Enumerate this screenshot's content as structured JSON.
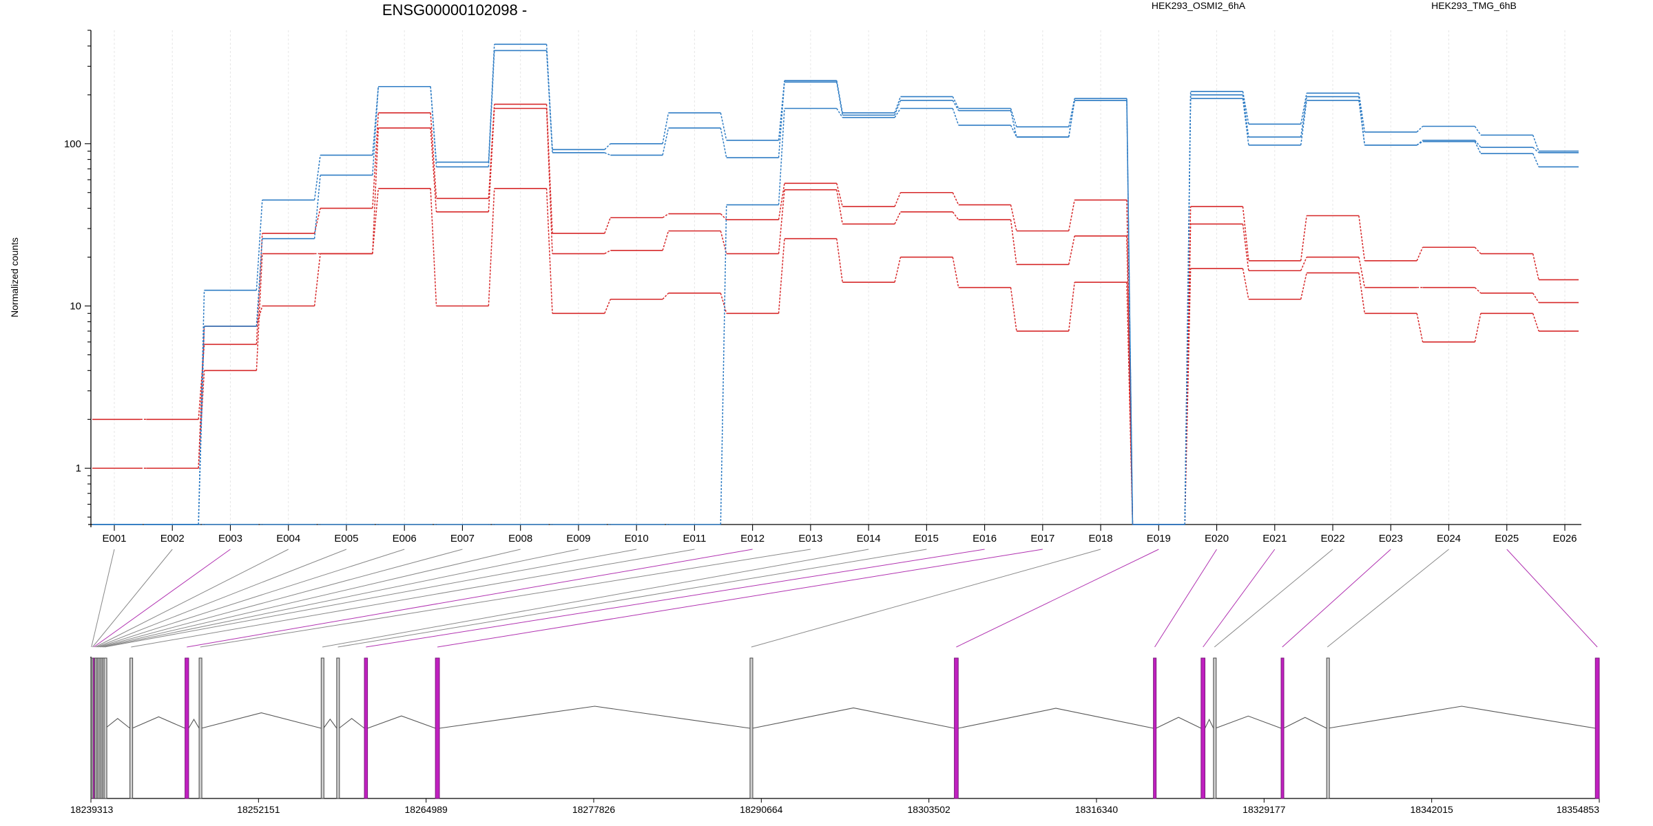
{
  "chart_data": {
    "type": "line",
    "title": "ENSG00000102098 -",
    "ylabel": "Normalized counts",
    "yscale": "log",
    "ylim": [
      0.45,
      500
    ],
    "yticks": [
      1,
      10,
      100
    ],
    "ytick_labels": [
      "1",
      "10",
      "100"
    ],
    "grid": "vertical dotted lines at each exon bin",
    "legend": "top, horizontal",
    "colors": {
      "HEK293_OSMI2_6hA": "#d62728",
      "HEK293_TMG_6hB": "#2e7cc4",
      "connector_gray": "#888888",
      "connector_magenta": "#b030b0",
      "exon_magenta": "#c020c0"
    },
    "categories": [
      "E001",
      "E002",
      "E003",
      "E004",
      "E005",
      "E006",
      "E007",
      "E008",
      "E009",
      "E010",
      "E011",
      "E012",
      "E013",
      "E014",
      "E015",
      "E016",
      "E017",
      "E018",
      "E019",
      "E020",
      "E021",
      "E022",
      "E023",
      "E024",
      "E025",
      "E026"
    ],
    "series": [
      {
        "name": "HEK293_OSMI2_6hA",
        "color": "#d62728",
        "values": [
          2.0,
          2.0,
          5.8,
          28,
          40,
          155,
          46,
          175,
          28,
          35,
          37,
          34,
          57,
          41,
          50,
          42,
          29,
          45,
          0.45,
          41,
          19,
          36,
          19,
          23,
          21,
          14.5
        ]
      },
      {
        "name": "HEK293_OSMI2_6hA",
        "color": "#d62728",
        "values": [
          1.0,
          1.0,
          4.0,
          21,
          21,
          125,
          38,
          165,
          21,
          22,
          29,
          21,
          52,
          32,
          38,
          34,
          18,
          27,
          0.45,
          32,
          16.5,
          20,
          13,
          13,
          12,
          10.5
        ]
      },
      {
        "name": "HEK293_OSMI2_6hA",
        "color": "#d62728",
        "values": [
          1.0,
          1.0,
          7.5,
          10,
          21,
          53,
          10,
          53,
          9,
          11,
          12,
          9,
          26,
          14,
          20,
          13,
          7,
          14,
          0.45,
          17,
          11,
          16,
          9,
          6,
          9,
          7
        ]
      },
      {
        "name": "HEK293_TMG_6hB",
        "color": "#2e7cc4",
        "values": [
          0.45,
          0.45,
          12.5,
          45,
          85,
          225,
          77,
          410,
          92,
          100,
          155,
          105,
          245,
          155,
          195,
          165,
          127,
          190,
          0.45,
          210,
          132,
          205,
          118,
          128,
          113,
          90
        ]
      },
      {
        "name": "HEK293_TMG_6hB",
        "color": "#2e7cc4",
        "values": [
          0.45,
          0.45,
          7.5,
          26,
          64,
          225,
          72,
          375,
          88,
          85,
          125,
          82,
          240,
          150,
          185,
          160,
          110,
          185,
          0.45,
          200,
          110,
          195,
          98,
          105,
          95,
          88
        ]
      },
      {
        "name": "HEK293_TMG_6hB",
        "color": "#2e7cc4",
        "values": [
          0.45,
          0.45,
          0.45,
          0.45,
          0.45,
          0.45,
          0.45,
          0.45,
          0.45,
          0.45,
          0.45,
          42,
          165,
          145,
          165,
          130,
          110,
          185,
          0.45,
          190,
          98,
          185,
          98,
          103,
          87,
          72
        ]
      }
    ],
    "gene_model": {
      "xlim": [
        18239313,
        18354853
      ],
      "xticks": [
        18239313,
        18252151,
        18264989,
        18277826,
        18290664,
        18303502,
        18316340,
        18329177,
        18342015,
        18354853
      ],
      "xtick_labels": [
        "18239313",
        "18252151",
        "18264989",
        "18277826",
        "18290664",
        "18303502",
        "18316340",
        "18329177",
        "18342015",
        "18354853"
      ],
      "exons": [
        {
          "id": "E001",
          "start": 18239313,
          "end": 18239390,
          "highlight": false
        },
        {
          "id": "E002",
          "start": 18239400,
          "end": 18239480,
          "highlight": false
        },
        {
          "id": "E003",
          "start": 18239500,
          "end": 18239560,
          "highlight": true
        },
        {
          "id": "E004",
          "start": 18239600,
          "end": 18239700,
          "highlight": false
        },
        {
          "id": "E005",
          "start": 18239720,
          "end": 18239800,
          "highlight": false
        },
        {
          "id": "E006",
          "start": 18239830,
          "end": 18239920,
          "highlight": false
        },
        {
          "id": "E007",
          "start": 18239950,
          "end": 18240050,
          "highlight": false
        },
        {
          "id": "E008",
          "start": 18240080,
          "end": 18240180,
          "highlight": false
        },
        {
          "id": "E009",
          "start": 18240200,
          "end": 18240300,
          "highlight": false
        },
        {
          "id": "E010",
          "start": 18240320,
          "end": 18240420,
          "highlight": false
        },
        {
          "id": "E011",
          "start": 18242300,
          "end": 18242480,
          "highlight": false
        },
        {
          "id": "E012",
          "start": 18246520,
          "end": 18246800,
          "highlight": true
        },
        {
          "id": "E013",
          "start": 18247600,
          "end": 18247780,
          "highlight": false
        },
        {
          "id": "E014",
          "start": 18256950,
          "end": 18257130,
          "highlight": false
        },
        {
          "id": "E015",
          "start": 18258140,
          "end": 18258320,
          "highlight": false
        },
        {
          "id": "E016",
          "start": 18260260,
          "end": 18260500,
          "highlight": true
        },
        {
          "id": "E017",
          "start": 18265700,
          "end": 18266010,
          "highlight": true
        },
        {
          "id": "E018",
          "start": 18289800,
          "end": 18290000,
          "highlight": false
        },
        {
          "id": "E019",
          "start": 18305450,
          "end": 18305750,
          "highlight": true
        },
        {
          "id": "E020",
          "start": 18320700,
          "end": 18320900,
          "highlight": true
        },
        {
          "id": "E021",
          "start": 18324350,
          "end": 18324650,
          "highlight": true
        },
        {
          "id": "E022",
          "start": 18325300,
          "end": 18325450,
          "highlight": false
        },
        {
          "id": "E023",
          "start": 18330480,
          "end": 18330660,
          "highlight": true
        },
        {
          "id": "E024",
          "start": 18333970,
          "end": 18334080,
          "highlight": false
        },
        {
          "id": "E025",
          "start": 18354550,
          "end": 18354853,
          "highlight": true
        }
      ]
    }
  }
}
